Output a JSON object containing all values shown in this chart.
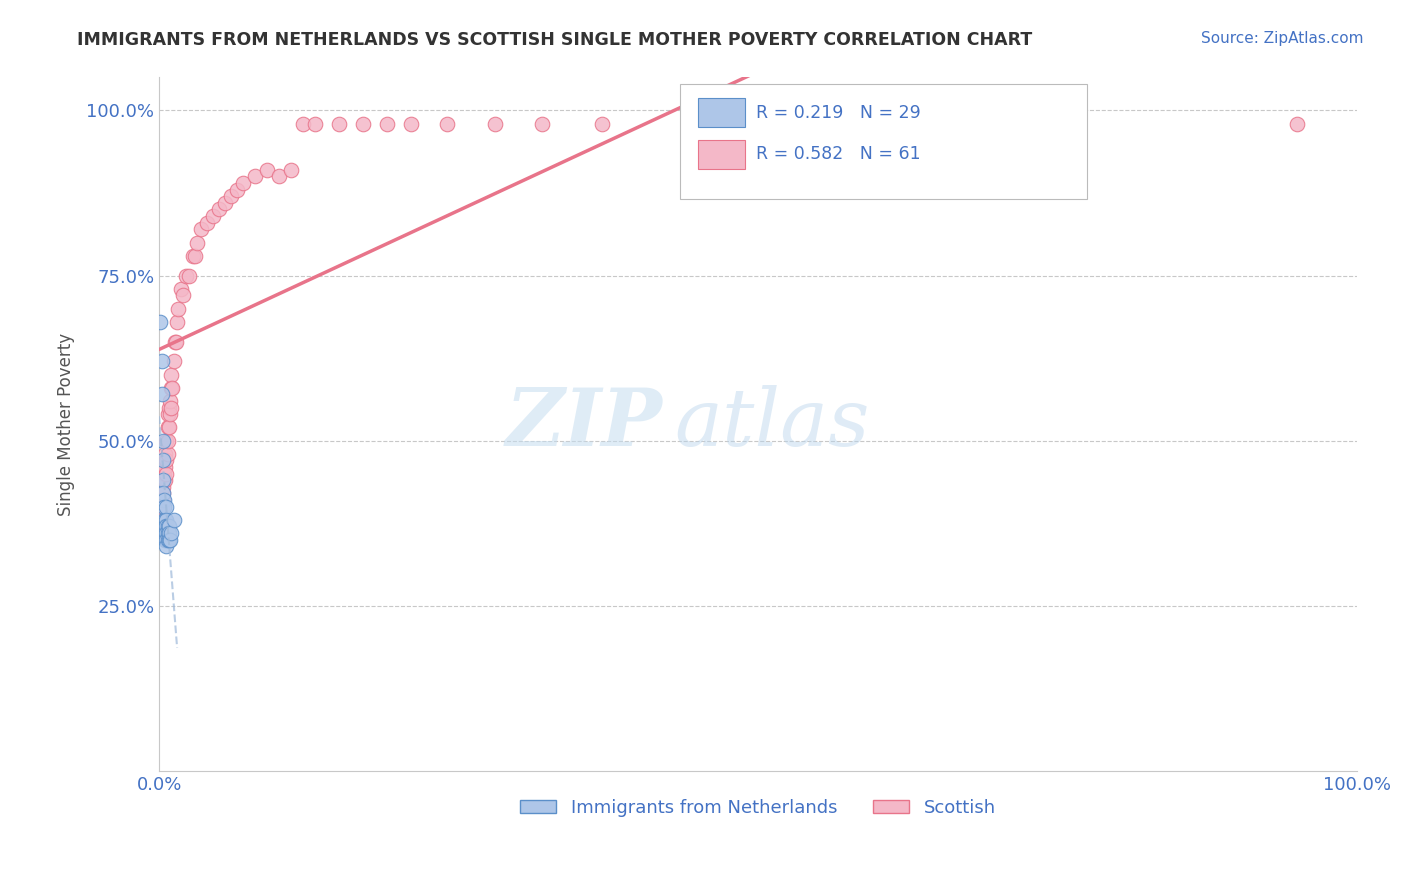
{
  "title": "IMMIGRANTS FROM NETHERLANDS VS SCOTTISH SINGLE MOTHER POVERTY CORRELATION CHART",
  "source": "Source: ZipAtlas.com",
  "ylabel": "Single Mother Poverty",
  "legend_labels": [
    "Immigrants from Netherlands",
    "Scottish"
  ],
  "blue_color": "#aec6e8",
  "pink_color": "#f4b8c8",
  "blue_line_color": "#5b8fc9",
  "pink_line_color": "#e8748a",
  "watermark_zip": "ZIP",
  "watermark_atlas": "atlas",
  "background_color": "#ffffff",
  "grid_color": "#c8c8c8",
  "text_color": "#4472c4",
  "label_color": "#555555",
  "blue_scatter_x": [
    0.001,
    0.002,
    0.002,
    0.003,
    0.003,
    0.003,
    0.003,
    0.004,
    0.004,
    0.004,
    0.005,
    0.005,
    0.005,
    0.005,
    0.006,
    0.006,
    0.006,
    0.006,
    0.006,
    0.006,
    0.007,
    0.007,
    0.007,
    0.008,
    0.008,
    0.008,
    0.009,
    0.01,
    0.012
  ],
  "blue_scatter_y": [
    0.68,
    0.62,
    0.57,
    0.5,
    0.47,
    0.44,
    0.42,
    0.41,
    0.4,
    0.38,
    0.38,
    0.37,
    0.36,
    0.35,
    0.4,
    0.38,
    0.37,
    0.36,
    0.35,
    0.34,
    0.37,
    0.36,
    0.35,
    0.37,
    0.36,
    0.35,
    0.35,
    0.36,
    0.38
  ],
  "pink_scatter_x": [
    0.001,
    0.002,
    0.003,
    0.003,
    0.003,
    0.004,
    0.004,
    0.004,
    0.005,
    0.005,
    0.005,
    0.006,
    0.006,
    0.006,
    0.007,
    0.007,
    0.007,
    0.007,
    0.008,
    0.008,
    0.009,
    0.009,
    0.01,
    0.01,
    0.01,
    0.011,
    0.012,
    0.013,
    0.014,
    0.015,
    0.016,
    0.018,
    0.02,
    0.022,
    0.025,
    0.028,
    0.03,
    0.032,
    0.035,
    0.04,
    0.045,
    0.05,
    0.055,
    0.06,
    0.065,
    0.07,
    0.08,
    0.09,
    0.1,
    0.11,
    0.12,
    0.13,
    0.15,
    0.17,
    0.19,
    0.21,
    0.24,
    0.28,
    0.32,
    0.37,
    0.95
  ],
  "pink_scatter_y": [
    0.38,
    0.4,
    0.41,
    0.42,
    0.43,
    0.44,
    0.45,
    0.47,
    0.44,
    0.46,
    0.48,
    0.45,
    0.47,
    0.5,
    0.48,
    0.5,
    0.52,
    0.54,
    0.52,
    0.55,
    0.54,
    0.56,
    0.55,
    0.58,
    0.6,
    0.58,
    0.62,
    0.65,
    0.65,
    0.68,
    0.7,
    0.73,
    0.72,
    0.75,
    0.75,
    0.78,
    0.78,
    0.8,
    0.82,
    0.83,
    0.84,
    0.85,
    0.86,
    0.87,
    0.88,
    0.89,
    0.9,
    0.91,
    0.9,
    0.91,
    0.98,
    0.98,
    0.98,
    0.98,
    0.98,
    0.98,
    0.98,
    0.98,
    0.98,
    0.98,
    0.98
  ],
  "xlim": [
    0.0,
    1.0
  ],
  "ylim": [
    0.0,
    1.05
  ]
}
